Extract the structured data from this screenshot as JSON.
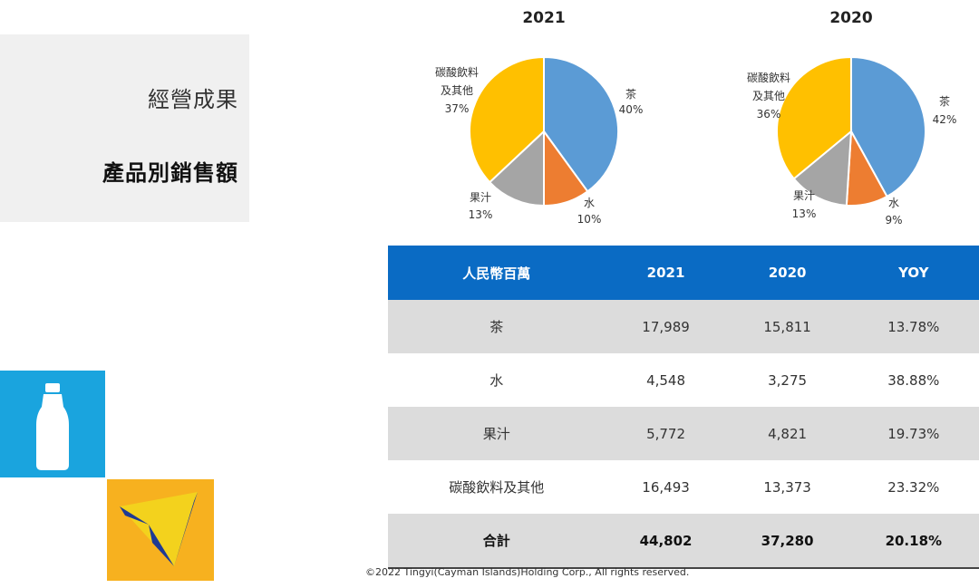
{
  "left": {
    "title": "經營成果",
    "subtitle": "產品別銷售額"
  },
  "chart_data": [
    {
      "type": "pie",
      "title": "2021",
      "slices": [
        {
          "label": "茶",
          "value": 40,
          "color": "#5b9bd5"
        },
        {
          "label": "水",
          "value": 10,
          "color": "#ed7d31"
        },
        {
          "label": "果汁",
          "value": 13,
          "color": "#a5a5a5"
        },
        {
          "label": "碳酸飲料及其他",
          "value": 37,
          "color": "#ffc000"
        }
      ]
    },
    {
      "type": "pie",
      "title": "2020",
      "slices": [
        {
          "label": "茶",
          "value": 42,
          "color": "#5b9bd5"
        },
        {
          "label": "水",
          "value": 9,
          "color": "#ed7d31"
        },
        {
          "label": "果汁",
          "value": 13,
          "color": "#a5a5a5"
        },
        {
          "label": "碳酸飲料及其他",
          "value": 36,
          "color": "#ffc000"
        }
      ]
    }
  ],
  "table": {
    "headers": [
      "人民幣百萬",
      "2021",
      "2020",
      "YOY"
    ],
    "rows": [
      [
        "茶",
        "17,989",
        "15,811",
        "13.78%"
      ],
      [
        "水",
        "4,548",
        "3,275",
        "38.88%"
      ],
      [
        "果汁",
        "5,772",
        "4,821",
        "19.73%"
      ],
      [
        "碳酸飲料及其他",
        "16,493",
        "13,373",
        "23.32%"
      ],
      [
        "合計",
        "44,802",
        "37,280",
        "20.18%"
      ]
    ]
  },
  "footer": {
    "copyright": "©2022 Tingyi(Cayman Islands)Holding Corp., All rights reserved."
  },
  "colors": {
    "header_blue": "#0a6bc4",
    "tile_blue": "#1aa4de",
    "tile_orange": "#f7b11f"
  }
}
